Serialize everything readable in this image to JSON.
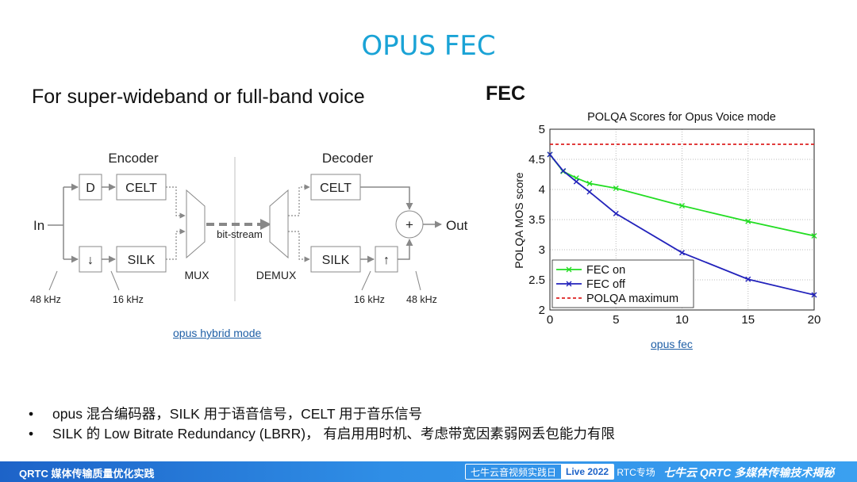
{
  "title": "OPUS FEC",
  "subtitle": "For super-wideband or full-band voice",
  "fec_label": "FEC",
  "diagram": {
    "encoder": "Encoder",
    "decoder": "Decoder",
    "in": "In",
    "out": "Out",
    "d": "D",
    "down": "↓",
    "up": "↑",
    "celt": "CELT",
    "silk": "SILK",
    "plus": "+",
    "bitstream": "bit-stream",
    "mux": "MUX",
    "demux": "DEMUX",
    "rate_48_in": "48 kHz",
    "rate_16_in": "16 kHz",
    "rate_16_out": "16 kHz",
    "rate_48_out": "48 kHz",
    "link": "opus hybrid mode"
  },
  "chart_link": "opus fec",
  "chart_data": {
    "type": "line",
    "title": "POLQA Scores for Opus Voice mode",
    "ylabel": "POLQA MOS score",
    "xlabel": "",
    "xlim": [
      0,
      20
    ],
    "ylim": [
      2,
      5
    ],
    "xticks": [
      "0",
      "5",
      "10",
      "15",
      "20"
    ],
    "yticks": [
      "2",
      "2.5",
      "3",
      "3.5",
      "4",
      "4.5",
      "5"
    ],
    "legend_position": "bottom-left",
    "series": [
      {
        "name": "FEC on",
        "color": "#22dd22",
        "x": [
          0,
          1,
          2,
          3,
          5,
          10,
          15,
          20
        ],
        "y": [
          4.58,
          4.3,
          4.19,
          4.1,
          4.02,
          3.73,
          3.47,
          3.23
        ]
      },
      {
        "name": "FEC off",
        "color": "#2222bb",
        "x": [
          0,
          1,
          2,
          3,
          5,
          10,
          15,
          20
        ],
        "y": [
          4.58,
          4.31,
          4.13,
          3.96,
          3.6,
          2.95,
          2.51,
          2.25
        ]
      },
      {
        "name": "POLQA maximum",
        "color": "#dd2222",
        "dashed": true,
        "x": [
          0,
          20
        ],
        "y": [
          4.75,
          4.75
        ]
      }
    ]
  },
  "bullets": [
    "opus 混合编码器，SILK 用于语音信号，CELT 用于音乐信号",
    "SILK 的 Low Bitrate Redundancy (LBRR)， 有启用用时机、考虑带宽因素弱网丢包能力有限"
  ],
  "bullet_symbol": "•",
  "footer": {
    "left": "QRTC 媒体传输质量优化实践",
    "event": "七牛云音视频实践日",
    "live": "Live 2022",
    "tag": "· RTC专场",
    "right": "七牛云 QRTC 多媒体传输技术揭秘"
  }
}
